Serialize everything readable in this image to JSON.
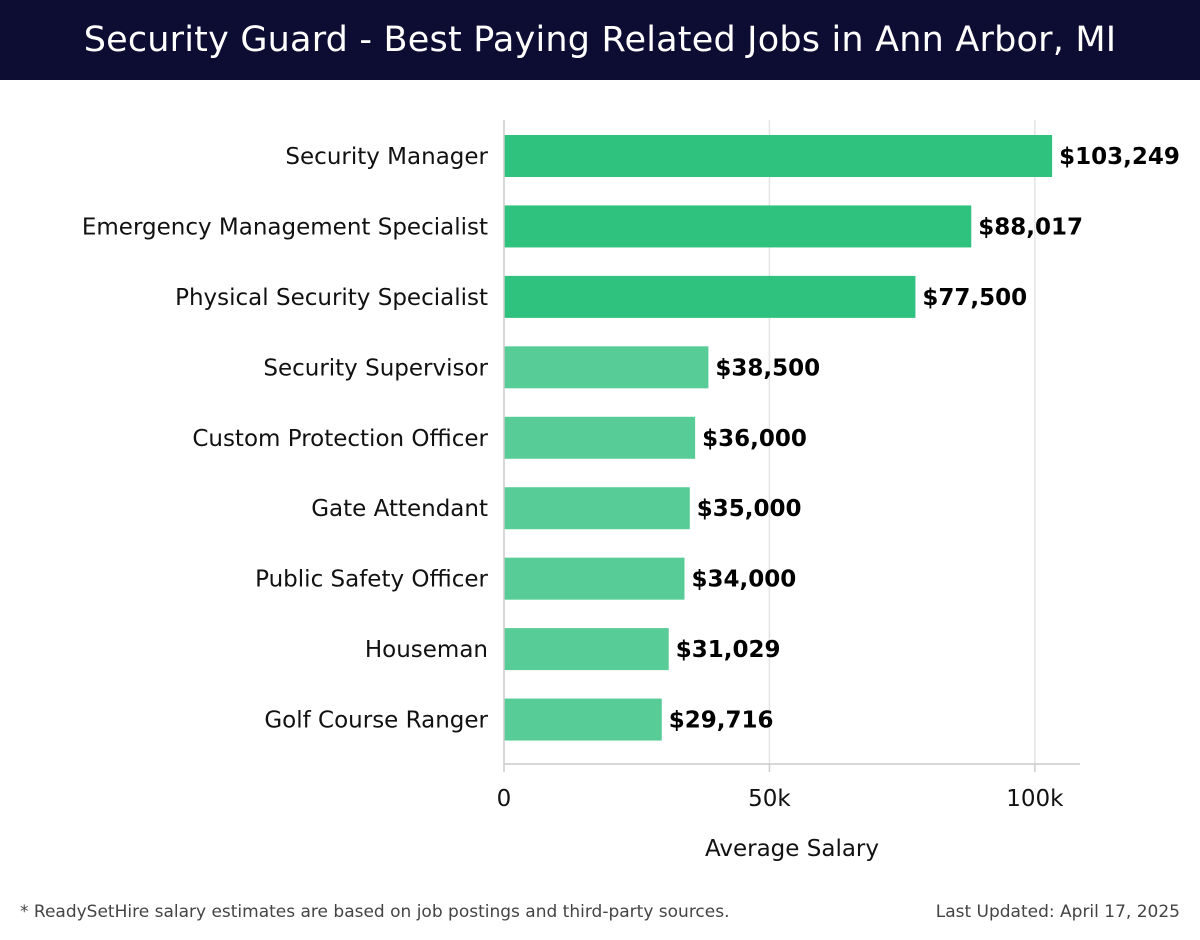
{
  "header": {
    "title": "Security Guard - Best Paying Related Jobs in Ann Arbor, MI"
  },
  "footer": {
    "note": "* ReadySetHire salary estimates are based on job postings and third-party sources.",
    "updated": "Last Updated: April 17, 2025"
  },
  "colors": {
    "header_bg": "#0d0d33",
    "bar_high": "#2ec27e",
    "bar_low": "#57cc96",
    "grid": "#e4e4e4"
  },
  "chart_data": {
    "type": "bar",
    "orientation": "horizontal",
    "categories": [
      "Security Manager",
      "Emergency Management Specialist",
      "Physical Security Specialist",
      "Security Supervisor",
      "Custom Protection Officer",
      "Gate Attendant",
      "Public Safety Officer",
      "Houseman",
      "Golf Course Ranger"
    ],
    "values": [
      103249,
      88017,
      77500,
      38500,
      36000,
      35000,
      34000,
      31029,
      29716
    ],
    "value_labels": [
      "$103,249",
      "$88,017",
      "$77,500",
      "$38,500",
      "$36,000",
      "$35,000",
      "$34,000",
      "$31,029",
      "$29,716"
    ],
    "xlabel": "Average Salary",
    "xlim": [
      0,
      108500
    ],
    "xticks": [
      0,
      50000,
      100000
    ],
    "xtick_labels": [
      "0",
      "50k",
      "100k"
    ],
    "grid": true
  }
}
